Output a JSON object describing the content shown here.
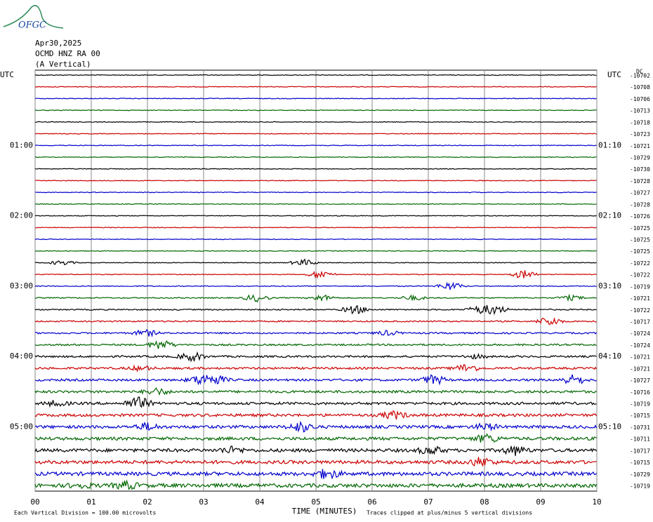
{
  "chart_data": {
    "type": "helicorder",
    "logo": "OFGC",
    "date": "Apr30,2025",
    "station": "OCMD HNZ RA 00",
    "component": "(A Vertical)",
    "corner_label": "DC",
    "x_label": "TIME (MINUTES)",
    "scale_note": "Each Vertical Division =  100.00 microvolts",
    "clip_note": "Traces clipped at plus/minus 5 vertical divisions",
    "colors": [
      "#000000",
      "#cc0000",
      "#0000cc",
      "#006600"
    ],
    "xlim": [
      0,
      10
    ],
    "xticks": [
      {
        "value": 0,
        "label": "00"
      },
      {
        "value": 1,
        "label": "01"
      },
      {
        "value": 2,
        "label": "02"
      },
      {
        "value": 3,
        "label": "03"
      },
      {
        "value": 4,
        "label": "04"
      },
      {
        "value": 5,
        "label": "05"
      },
      {
        "value": 6,
        "label": "06"
      },
      {
        "value": 7,
        "label": "07"
      },
      {
        "value": 8,
        "label": "08"
      },
      {
        "value": 9,
        "label": "09"
      },
      {
        "value": 10,
        "label": "10"
      }
    ],
    "left_labels": [
      "UTC",
      null,
      null,
      null,
      null,
      null,
      "01:00",
      null,
      null,
      null,
      null,
      null,
      "02:00",
      null,
      null,
      null,
      null,
      null,
      "03:00",
      null,
      null,
      null,
      null,
      null,
      "04:00",
      null,
      null,
      null,
      null,
      null,
      "05:00",
      null,
      null,
      null,
      null,
      null
    ],
    "right_labels": [
      "UTC",
      null,
      null,
      null,
      null,
      null,
      "01:10",
      null,
      null,
      null,
      null,
      null,
      "02:10",
      null,
      null,
      null,
      null,
      null,
      "03:10",
      null,
      null,
      null,
      null,
      null,
      "04:10",
      null,
      null,
      null,
      null,
      null,
      "05:10",
      null,
      null,
      null,
      null,
      null
    ],
    "offsets": [
      -10702,
      -10708,
      -10706,
      -10713,
      -10718,
      -10723,
      -10721,
      -10729,
      -10730,
      -10728,
      -10727,
      -10728,
      -10726,
      -10725,
      -10725,
      -10725,
      -10722,
      -10722,
      -10719,
      -10721,
      -10722,
      -10717,
      -10724,
      -10724,
      -10721,
      -10721,
      -10727,
      -10716,
      -10719,
      -10715,
      -10731,
      -10711,
      -10717,
      -10715,
      -10729,
      -10719
    ]
  }
}
